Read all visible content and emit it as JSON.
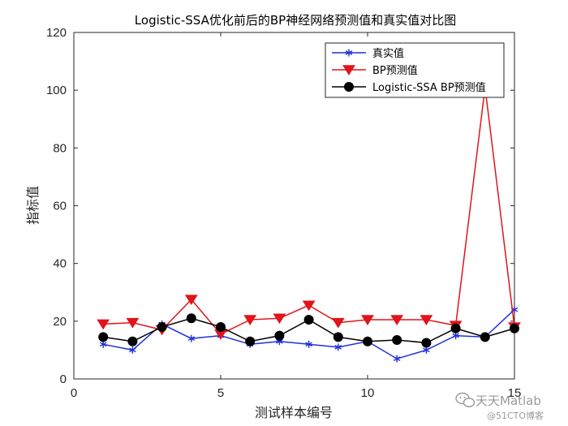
{
  "chart_data": {
    "type": "line",
    "title": "Logistic-SSA优化前后的BP神经网络预测值和真实值对比图",
    "xlabel": "测试样本编号",
    "ylabel": "指标值",
    "xlim": [
      0,
      15
    ],
    "ylim": [
      0,
      120
    ],
    "xticks": [
      0,
      5,
      10,
      15
    ],
    "yticks": [
      0,
      20,
      40,
      60,
      80,
      100,
      120
    ],
    "grid": false,
    "legend_position": "top-right",
    "x": [
      1,
      2,
      3,
      4,
      5,
      6,
      7,
      8,
      9,
      10,
      11,
      12,
      13,
      14,
      15
    ],
    "series": [
      {
        "name": "真实值",
        "color": "#1f2fdc",
        "marker": "asterisk",
        "values": [
          12,
          10,
          19,
          14,
          15,
          12,
          13,
          12,
          11,
          13,
          7,
          10,
          15,
          14.5,
          24
        ]
      },
      {
        "name": "BP预测值",
        "color": "#e0141a",
        "marker": "triangle-down",
        "values": [
          19,
          19.5,
          17,
          27.5,
          15.5,
          20.5,
          21,
          25.5,
          19.5,
          20.5,
          20.5,
          20.5,
          18.5,
          101,
          18
        ]
      },
      {
        "name": "Logistic-SSA BP预测值",
        "color": "#000000",
        "marker": "circle",
        "values": [
          14.5,
          13,
          18,
          21,
          18,
          13,
          15,
          20.5,
          14.5,
          13,
          13.5,
          12.5,
          17.5,
          14.5,
          17.5
        ]
      }
    ]
  },
  "watermark": {
    "brand": "天天Matlab",
    "site": "@51CTO博客",
    "icon": "wechat-icon"
  }
}
